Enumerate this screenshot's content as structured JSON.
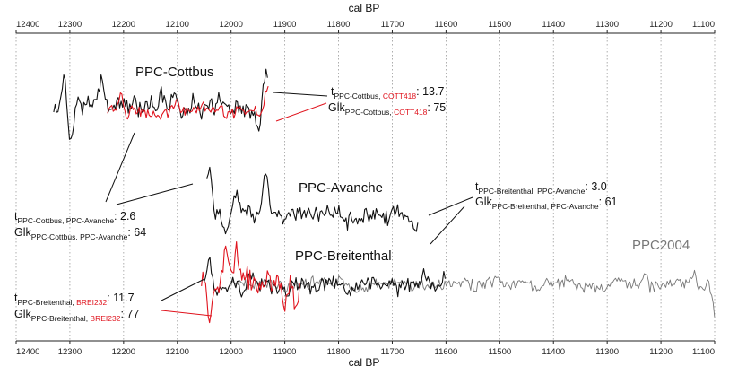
{
  "chart_data": {
    "type": "line",
    "xlabel_top": "cal BP",
    "xlabel_bottom": "cal BP",
    "xlim": [
      12400,
      11100
    ],
    "x_ticks": [
      12400,
      12300,
      12200,
      12100,
      12000,
      11900,
      11800,
      11700,
      11600,
      11500,
      11400,
      11300,
      11200,
      11100
    ],
    "grid": "vertical dotted",
    "colors": {
      "black_series": "#111111",
      "red_series": "#e0141e",
      "grey_series": "#777777"
    },
    "labels": {
      "cottbus": "PPC-Cottbus",
      "avanche": "PPC-Avanche",
      "breitenthal": "PPC-Breitenthal",
      "ppc2004": "PPC2004"
    },
    "stats": {
      "s1": {
        "t": "t",
        "t_sub": "PPC-Cottbus, ",
        "t_sub_red": "COTT418",
        "t_val": ": 13.7",
        "g": "Glk",
        "g_sub": "PPC-Cottbus, ",
        "g_sub_red": "COTT418",
        "g_val": ": 75"
      },
      "s2": {
        "t": "t",
        "t_sub": "PPC-Breitenthal, PPC-Avanche",
        "t_val": ": 3.0",
        "g": "Glk",
        "g_sub": "PPC-Breitenthal, PPC-Avanche",
        "g_val": ": 61"
      },
      "s3": {
        "t": "t",
        "t_sub": "PPC-Cottbus, PPC-Avanche",
        "t_val": ": 2.6",
        "g": "Glk",
        "g_sub": "PPC-Cottbus, PPC-Avanche",
        "g_val": ": 64"
      },
      "s4": {
        "t": "t",
        "t_sub": "PPC-Breitenthal, ",
        "t_sub_red": "BREI232",
        "t_val": ": 11.7",
        "g": "Glk",
        "g_sub": "PPC-Breitenthal, ",
        "g_sub_red": "BREI232",
        "g_val": ": 77"
      }
    },
    "series": [
      {
        "name": "PPC-Cottbus",
        "color": "black",
        "x_range": [
          12330,
          11930
        ]
      },
      {
        "name": "COTT418",
        "color": "red",
        "x_range": [
          12230,
          11930
        ]
      },
      {
        "name": "PPC-Avanche",
        "color": "black",
        "x_range": [
          12045,
          11650
        ]
      },
      {
        "name": "PPC-Breitenthal",
        "color": "black",
        "x_range": [
          12050,
          11600
        ]
      },
      {
        "name": "BREI232",
        "color": "red",
        "x_range": [
          12055,
          11870
        ]
      },
      {
        "name": "PPC2004",
        "color": "grey",
        "x_range": [
          12000,
          11100
        ]
      }
    ]
  }
}
